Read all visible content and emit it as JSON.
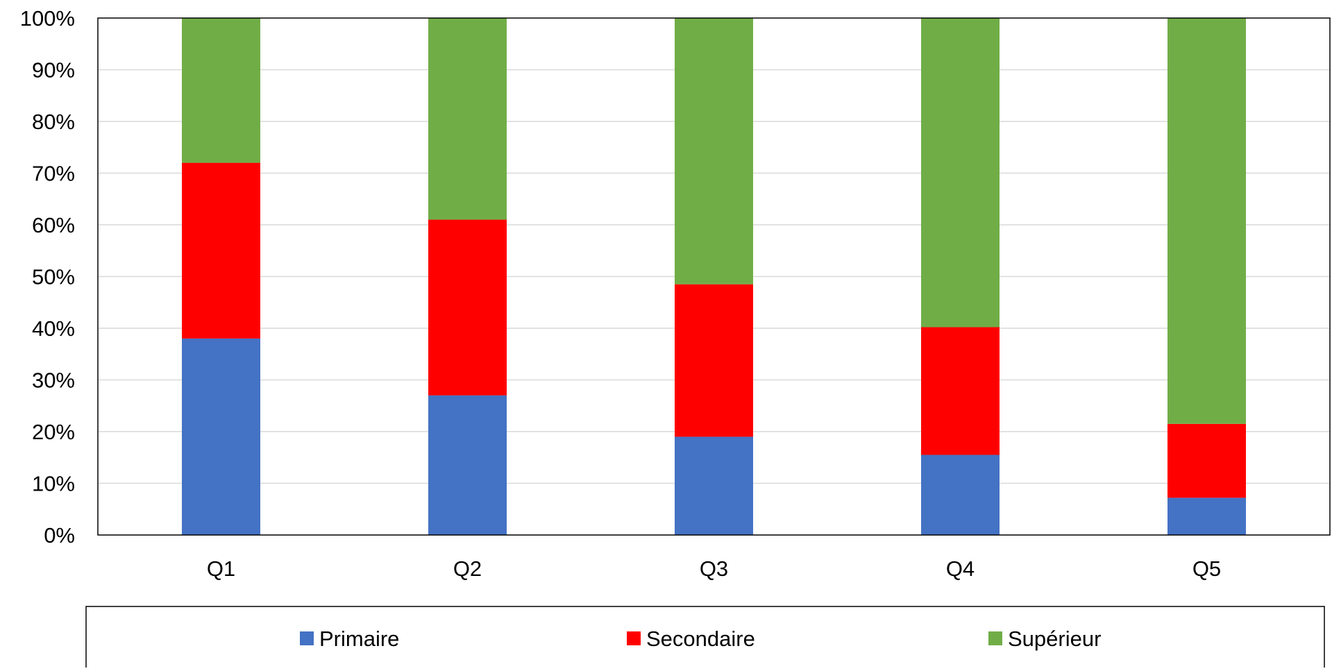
{
  "chart_data": {
    "type": "bar",
    "stacked": true,
    "percent_stacked": true,
    "title": "",
    "xlabel": "",
    "ylabel": "",
    "categories": [
      "Q1",
      "Q2",
      "Q3",
      "Q4",
      "Q5"
    ],
    "series": [
      {
        "name": "Primaire",
        "color": "#4472C4",
        "values": [
          38,
          27,
          19,
          15.5,
          7.2
        ]
      },
      {
        "name": "Secondaire",
        "color": "#FF0000",
        "values": [
          34,
          34,
          29.5,
          24.7,
          14.3
        ]
      },
      {
        "name": "Supérieur",
        "color": "#70AD47",
        "values": [
          28,
          39,
          51.5,
          59.8,
          78.5
        ]
      }
    ],
    "ylim": [
      0,
      100
    ],
    "yticks": [
      "0%",
      "10%",
      "20%",
      "30%",
      "40%",
      "50%",
      "60%",
      "70%",
      "80%",
      "90%",
      "100%"
    ],
    "grid": true,
    "legend_position": "bottom"
  }
}
